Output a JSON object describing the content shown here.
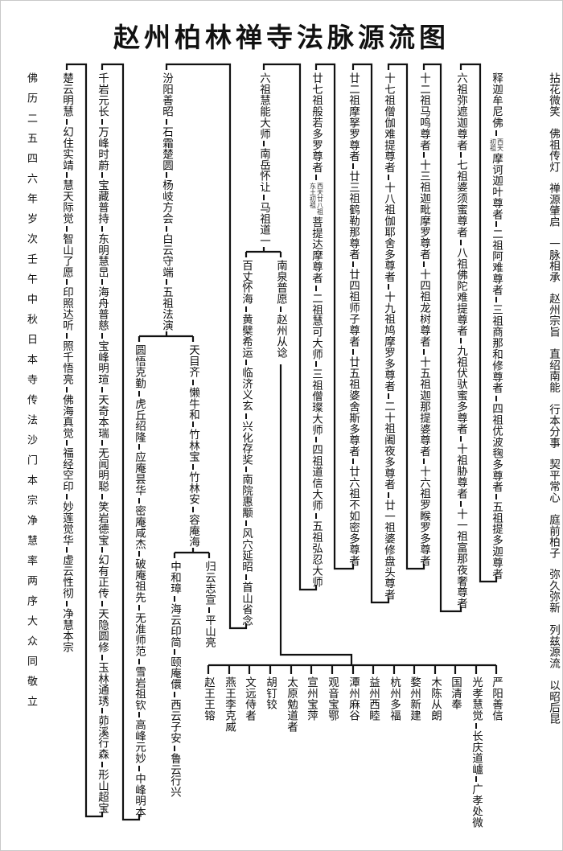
{
  "title": "赵州柏林禅寺法脉源流图",
  "verse": [
    "拈花微笑",
    "佛祖传灯",
    "禅源肇启",
    "一脉相承",
    "赵州宗旨",
    "直绍南能",
    "行本分事",
    "契平常心",
    "庭前柏子",
    "弥久弥新",
    "列兹源流",
    "以昭后昆"
  ],
  "colophon": "佛历二五四六年岁次壬午中秋日本寺传法沙门本宗净慧率两序大众同敬立",
  "columns": [
    {
      "id": "shakya",
      "nodes": [
        {
          "name": "释迦牟尼佛"
        },
        {
          "name": "摩诃迦叶尊者",
          "note": [
            "西天",
            "初祖"
          ]
        },
        {
          "name": "二祖阿难尊者"
        },
        {
          "name": "三祖商那和修尊者"
        },
        {
          "name": "四祖优波毱多尊者"
        },
        {
          "name": "五祖提多迦尊者"
        }
      ]
    },
    {
      "id": "p6",
      "nodes": [
        {
          "name": "六祖弥遮迦尊者"
        },
        {
          "name": "七祖婆须蜜尊者"
        },
        {
          "name": "八祖佛陀难提尊者"
        },
        {
          "name": "九祖伏驮蜜多尊者"
        },
        {
          "name": "十祖胁尊者"
        },
        {
          "name": "十一祖富那夜奢尊者"
        }
      ]
    },
    {
      "id": "p12",
      "nodes": [
        {
          "name": "十二祖马鸣尊者"
        },
        {
          "name": "十三祖迦毗摩罗尊者"
        },
        {
          "name": "十四祖龙树尊者"
        },
        {
          "name": "十五祖迦那提婆尊者"
        },
        {
          "name": "十六祖罗睺罗多尊者"
        }
      ]
    },
    {
      "id": "p17",
      "nodes": [
        {
          "name": "十七祖僧伽难提尊者"
        },
        {
          "name": "十八祖伽耶舍多尊者"
        },
        {
          "name": "十九祖鸠摩罗多尊者"
        },
        {
          "name": "二十祖阇夜多尊者"
        },
        {
          "name": "廿一祖婆修盘头尊者"
        }
      ]
    },
    {
      "id": "p22",
      "nodes": [
        {
          "name": "廿二祖摩拏罗尊者"
        },
        {
          "name": "廿三祖鹤勒那尊者"
        },
        {
          "name": "廿四祖师子尊者"
        },
        {
          "name": "廿五祖婆舍斯多尊者"
        },
        {
          "name": "廿六祖不如密多尊者"
        }
      ]
    },
    {
      "id": "p27",
      "nodes": [
        {
          "name": "廿七祖般若多罗尊者"
        },
        {
          "name": "菩提达摩尊者",
          "note": [
            "西天廿八祖",
            "东土初祖"
          ]
        },
        {
          "name": "二祖慧可大师"
        },
        {
          "name": "三祖僧璨大师"
        },
        {
          "name": "四祖道信大师"
        },
        {
          "name": "五祖弘忍大师"
        }
      ]
    },
    {
      "id": "huineng",
      "nodes": [
        {
          "name": "六祖慧能大师"
        },
        {
          "name": "南岳怀让"
        },
        {
          "name": "马祖道一"
        }
      ]
    },
    {
      "id": "nanquan",
      "nodes": [
        {
          "name": "南泉普愿"
        },
        {
          "name": "赵州从谂"
        }
      ]
    },
    {
      "id": "baizhang",
      "nodes": [
        {
          "name": "百丈怀海"
        },
        {
          "name": "黄檗希运"
        },
        {
          "name": "临济义玄"
        },
        {
          "name": "兴化存奖"
        },
        {
          "name": "南院惠颙"
        },
        {
          "name": "风穴延昭"
        },
        {
          "name": "首山省念"
        }
      ]
    },
    {
      "id": "fenyang",
      "nodes": [
        {
          "name": "汾阳善昭"
        },
        {
          "name": "石霜楚圆"
        },
        {
          "name": "杨岐方会"
        },
        {
          "name": "白云守端"
        },
        {
          "name": "五祖法演"
        }
      ]
    },
    {
      "id": "tianmu",
      "nodes": [
        {
          "name": "天目齐"
        },
        {
          "name": "懒牛和"
        },
        {
          "name": "竹林宝"
        },
        {
          "name": "竹林安"
        },
        {
          "name": "容庵海"
        }
      ]
    },
    {
      "id": "guiyun",
      "nodes": [
        {
          "name": "归云志宣"
        },
        {
          "name": "平山亮"
        }
      ]
    },
    {
      "id": "zhonghe",
      "nodes": [
        {
          "name": "中和璋"
        },
        {
          "name": "海云印简"
        },
        {
          "name": "颐庵儇"
        },
        {
          "name": "西云子安"
        },
        {
          "name": "鲁云行兴"
        }
      ]
    },
    {
      "id": "yuanwu",
      "nodes": [
        {
          "name": "圆悟克勤"
        },
        {
          "name": "虎丘绍隆"
        },
        {
          "name": "应庵昙华"
        },
        {
          "name": "密庵咸杰"
        },
        {
          "name": "破庵祖先"
        },
        {
          "name": "无准师范"
        },
        {
          "name": "雪岩祖钦"
        },
        {
          "name": "高峰元妙"
        },
        {
          "name": "中峰明本"
        }
      ]
    },
    {
      "id": "qianyan",
      "nodes": [
        {
          "name": "千岩元长"
        },
        {
          "name": "万峰时蔚"
        },
        {
          "name": "宝藏普持"
        },
        {
          "name": "东明慧旵"
        },
        {
          "name": "海舟普慈"
        },
        {
          "name": "宝峰明瑄"
        },
        {
          "name": "天奇本瑞"
        },
        {
          "name": "无闻明聪"
        },
        {
          "name": "笑岩德宝"
        },
        {
          "name": "幻有正传"
        },
        {
          "name": "天隐圆修"
        },
        {
          "name": "玉林通琇"
        },
        {
          "name": "茆溪行森"
        },
        {
          "name": "形山超宝"
        }
      ]
    },
    {
      "id": "chuyun",
      "nodes": [
        {
          "name": "楚云明慧"
        },
        {
          "name": "幻住实靖"
        },
        {
          "name": "慧天际觉"
        },
        {
          "name": "智山了愿"
        },
        {
          "name": "印照达听"
        },
        {
          "name": "照千悟亮"
        },
        {
          "name": "佛海真觉"
        },
        {
          "name": "福经空印"
        },
        {
          "name": "妙莲觉华"
        },
        {
          "name": "虚云性彻"
        },
        {
          "name": "净慧本宗"
        }
      ]
    },
    {
      "id": "zz1",
      "nodes": [
        {
          "name": "严阳善信"
        }
      ]
    },
    {
      "id": "zz2",
      "nodes": [
        {
          "name": "光孝慧觉"
        },
        {
          "name": "长庆道㠠"
        },
        {
          "name": "广孝处微"
        }
      ]
    },
    {
      "id": "zz3",
      "nodes": [
        {
          "name": "国清奉"
        }
      ]
    },
    {
      "id": "zz4",
      "nodes": [
        {
          "name": "木陈从朗"
        }
      ]
    },
    {
      "id": "zz5",
      "nodes": [
        {
          "name": "婺州新建"
        }
      ]
    },
    {
      "id": "zz6",
      "nodes": [
        {
          "name": "杭州多福"
        }
      ]
    },
    {
      "id": "zz7",
      "nodes": [
        {
          "name": "益州西睦"
        }
      ]
    },
    {
      "id": "zz8",
      "nodes": [
        {
          "name": "潭州麻谷"
        }
      ]
    },
    {
      "id": "zz9",
      "nodes": [
        {
          "name": "观音宝鄂"
        }
      ]
    },
    {
      "id": "zz10",
      "nodes": [
        {
          "name": "宣州宝萍"
        }
      ]
    },
    {
      "id": "zz11",
      "nodes": [
        {
          "name": "太原勉道者"
        }
      ]
    },
    {
      "id": "zz12",
      "nodes": [
        {
          "name": "胡钉铰"
        }
      ]
    },
    {
      "id": "zz13",
      "nodes": [
        {
          "name": "文远侍者"
        }
      ]
    },
    {
      "id": "zz14",
      "nodes": [
        {
          "name": "燕王李克威"
        }
      ]
    },
    {
      "id": "zz15",
      "nodes": [
        {
          "name": "赵王王镕"
        }
      ]
    }
  ]
}
